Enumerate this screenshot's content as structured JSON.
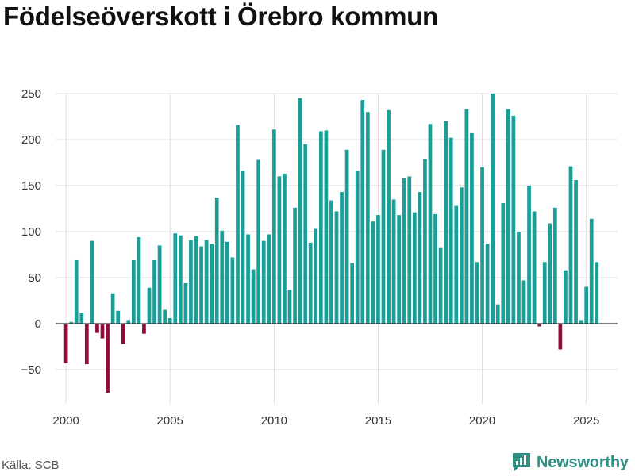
{
  "title": "Födelseöverskott i Örebro kommun",
  "source": "Källa: SCB",
  "brand": "Newsworthy",
  "colors": {
    "positive": "#1a9e98",
    "negative": "#920a3e",
    "grid": "#dddddd",
    "zero_line": "#333333",
    "brand": "#2f8f83"
  },
  "chart_data": {
    "type": "bar",
    "title": "Födelseöverskott i Örebro kommun",
    "xlabel": "",
    "ylabel": "",
    "ylim": [
      -75,
      250
    ],
    "xlim": [
      1999.5,
      2026.5
    ],
    "y_ticks": [
      -50,
      0,
      50,
      100,
      150,
      200,
      250
    ],
    "x_ticks": [
      2000,
      2005,
      2010,
      2015,
      2020,
      2025
    ],
    "bar_spacing_years": 0.25,
    "series": [
      {
        "name": "Födelseöverskott",
        "start_year": 2000.0,
        "values": [
          -43,
          2,
          69,
          12,
          -44,
          90,
          -10,
          -16,
          -75,
          33,
          14,
          -22,
          4,
          69,
          94,
          -11,
          39,
          69,
          85,
          15,
          6,
          98,
          96,
          44,
          91,
          95,
          84,
          91,
          87,
          137,
          101,
          89,
          72,
          216,
          166,
          97,
          59,
          178,
          90,
          97,
          211,
          160,
          163,
          37,
          126,
          245,
          195,
          88,
          103,
          209,
          210,
          134,
          122,
          143,
          189,
          66,
          166,
          243,
          230,
          111,
          118,
          189,
          232,
          135,
          118,
          158,
          160,
          121,
          143,
          179,
          217,
          119,
          83,
          220,
          202,
          128,
          148,
          233,
          207,
          67,
          170,
          87,
          250,
          21,
          131,
          233,
          226,
          100,
          47,
          150,
          122,
          -3,
          67,
          109,
          126,
          -28,
          58,
          171,
          156,
          4,
          40,
          114,
          67
        ]
      }
    ]
  }
}
